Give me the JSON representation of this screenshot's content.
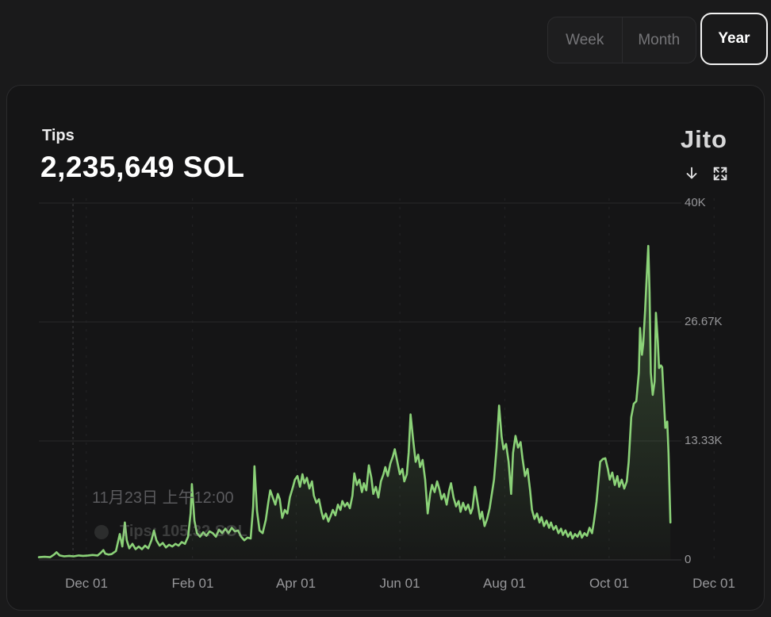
{
  "controls": {
    "items": [
      {
        "label": "Week",
        "selected": false
      },
      {
        "label": "Month",
        "selected": false
      },
      {
        "label": "Year",
        "selected": true
      }
    ]
  },
  "card": {
    "title": "Tips",
    "value": "2,235,649 SOL",
    "logo": "Jito",
    "icons": [
      {
        "name": "download-icon"
      },
      {
        "name": "expand-icon"
      }
    ]
  },
  "tooltip": {
    "date": "11月23日 上午12:00",
    "value_label": "Tips: 105.32 SOL",
    "crosshair_fx": 0.054
  },
  "chart_data": {
    "type": "area",
    "title": "Tips",
    "total": "2,235,649 SOL",
    "unit": "SOL",
    "values_unit": "thousand SOL per day",
    "line_color": "#8bd278",
    "grid": true,
    "legend": false,
    "x_axis": {
      "tick_labels": [
        "Dec 01",
        "Feb 01",
        "Apr 01",
        "Jun 01",
        "Aug 01",
        "Oct 01",
        "Dec 01"
      ],
      "tick_fx": [
        0.075,
        0.243,
        0.407,
        0.571,
        0.737,
        0.902,
        1.068
      ]
    },
    "y_axis": {
      "tick_labels": [
        "0",
        "13.33K",
        "26.67K",
        "40K"
      ],
      "tick_values": [
        0,
        13.33,
        26.67,
        40
      ],
      "ylim": [
        0,
        40
      ]
    },
    "points": [
      [
        0.0,
        0.3
      ],
      [
        0.009,
        0.35
      ],
      [
        0.018,
        0.3
      ],
      [
        0.024,
        0.6
      ],
      [
        0.028,
        0.85
      ],
      [
        0.033,
        0.5
      ],
      [
        0.04,
        0.4
      ],
      [
        0.048,
        0.45
      ],
      [
        0.055,
        0.4
      ],
      [
        0.063,
        0.5
      ],
      [
        0.07,
        0.45
      ],
      [
        0.078,
        0.5
      ],
      [
        0.085,
        0.55
      ],
      [
        0.093,
        0.5
      ],
      [
        0.098,
        0.8
      ],
      [
        0.102,
        1.1
      ],
      [
        0.105,
        0.7
      ],
      [
        0.11,
        0.6
      ],
      [
        0.115,
        0.65
      ],
      [
        0.122,
        1.0
      ],
      [
        0.128,
        2.9
      ],
      [
        0.132,
        1.5
      ],
      [
        0.136,
        4.2
      ],
      [
        0.139,
        2.2
      ],
      [
        0.143,
        1.3
      ],
      [
        0.148,
        1.8
      ],
      [
        0.153,
        1.2
      ],
      [
        0.158,
        1.5
      ],
      [
        0.163,
        1.2
      ],
      [
        0.168,
        1.6
      ],
      [
        0.173,
        1.3
      ],
      [
        0.178,
        2.2
      ],
      [
        0.182,
        3.3
      ],
      [
        0.186,
        2.2
      ],
      [
        0.191,
        1.6
      ],
      [
        0.196,
        1.9
      ],
      [
        0.201,
        1.4
      ],
      [
        0.206,
        1.7
      ],
      [
        0.211,
        1.5
      ],
      [
        0.216,
        1.8
      ],
      [
        0.221,
        1.6
      ],
      [
        0.226,
        2.0
      ],
      [
        0.231,
        1.8
      ],
      [
        0.236,
        2.6
      ],
      [
        0.24,
        5.2
      ],
      [
        0.242,
        8.5
      ],
      [
        0.246,
        4.4
      ],
      [
        0.25,
        3.0
      ],
      [
        0.255,
        2.6
      ],
      [
        0.26,
        3.1
      ],
      [
        0.265,
        2.7
      ],
      [
        0.27,
        3.2
      ],
      [
        0.275,
        3.0
      ],
      [
        0.28,
        2.6
      ],
      [
        0.285,
        3.4
      ],
      [
        0.29,
        3.0
      ],
      [
        0.295,
        3.5
      ],
      [
        0.3,
        3.0
      ],
      [
        0.305,
        3.6
      ],
      [
        0.31,
        3.2
      ],
      [
        0.315,
        3.3
      ],
      [
        0.32,
        2.6
      ],
      [
        0.325,
        2.2
      ],
      [
        0.33,
        2.5
      ],
      [
        0.335,
        2.4
      ],
      [
        0.339,
        6.0
      ],
      [
        0.341,
        10.5
      ],
      [
        0.345,
        5.5
      ],
      [
        0.349,
        3.3
      ],
      [
        0.354,
        3.0
      ],
      [
        0.359,
        4.5
      ],
      [
        0.363,
        6.5
      ],
      [
        0.366,
        7.8
      ],
      [
        0.37,
        7.0
      ],
      [
        0.374,
        6.2
      ],
      [
        0.378,
        7.4
      ],
      [
        0.381,
        6.8
      ],
      [
        0.385,
        4.7
      ],
      [
        0.389,
        5.6
      ],
      [
        0.393,
        5.2
      ],
      [
        0.397,
        7.0
      ],
      [
        0.402,
        8.2
      ],
      [
        0.405,
        9.0
      ],
      [
        0.409,
        9.4
      ],
      [
        0.413,
        8.2
      ],
      [
        0.417,
        9.6
      ],
      [
        0.42,
        8.6
      ],
      [
        0.424,
        9.2
      ],
      [
        0.428,
        8.0
      ],
      [
        0.432,
        8.8
      ],
      [
        0.435,
        7.2
      ],
      [
        0.439,
        6.4
      ],
      [
        0.443,
        6.8
      ],
      [
        0.447,
        5.4
      ],
      [
        0.45,
        4.6
      ],
      [
        0.454,
        5.2
      ],
      [
        0.458,
        4.3
      ],
      [
        0.462,
        5.0
      ],
      [
        0.465,
        5.6
      ],
      [
        0.469,
        5.0
      ],
      [
        0.473,
        6.2
      ],
      [
        0.477,
        5.6
      ],
      [
        0.48,
        6.6
      ],
      [
        0.484,
        6.0
      ],
      [
        0.488,
        6.4
      ],
      [
        0.492,
        5.8
      ],
      [
        0.496,
        7.2
      ],
      [
        0.499,
        9.7
      ],
      [
        0.503,
        8.4
      ],
      [
        0.507,
        9.0
      ],
      [
        0.511,
        7.6
      ],
      [
        0.514,
        8.6
      ],
      [
        0.518,
        7.8
      ],
      [
        0.522,
        10.6
      ],
      [
        0.526,
        9.2
      ],
      [
        0.529,
        7.4
      ],
      [
        0.533,
        8.2
      ],
      [
        0.537,
        7.0
      ],
      [
        0.541,
        8.8
      ],
      [
        0.545,
        9.6
      ],
      [
        0.548,
        10.4
      ],
      [
        0.552,
        9.4
      ],
      [
        0.556,
        10.8
      ],
      [
        0.56,
        11.6
      ],
      [
        0.563,
        12.4
      ],
      [
        0.567,
        11.0
      ],
      [
        0.571,
        9.6
      ],
      [
        0.575,
        10.2
      ],
      [
        0.578,
        8.8
      ],
      [
        0.582,
        9.6
      ],
      [
        0.585,
        12.0
      ],
      [
        0.588,
        16.3
      ],
      [
        0.592,
        13.5
      ],
      [
        0.596,
        11.0
      ],
      [
        0.6,
        11.8
      ],
      [
        0.603,
        10.4
      ],
      [
        0.607,
        11.2
      ],
      [
        0.611,
        9.0
      ],
      [
        0.615,
        5.2
      ],
      [
        0.619,
        7.4
      ],
      [
        0.622,
        8.4
      ],
      [
        0.626,
        7.6
      ],
      [
        0.63,
        8.8
      ],
      [
        0.634,
        7.8
      ],
      [
        0.637,
        6.8
      ],
      [
        0.641,
        7.4
      ],
      [
        0.645,
        6.2
      ],
      [
        0.649,
        7.8
      ],
      [
        0.652,
        8.6
      ],
      [
        0.656,
        7.0
      ],
      [
        0.66,
        6.0
      ],
      [
        0.664,
        6.6
      ],
      [
        0.667,
        5.4
      ],
      [
        0.671,
        6.4
      ],
      [
        0.675,
        5.6
      ],
      [
        0.679,
        6.2
      ],
      [
        0.683,
        5.2
      ],
      [
        0.686,
        5.8
      ],
      [
        0.69,
        8.2
      ],
      [
        0.694,
        6.4
      ],
      [
        0.698,
        4.6
      ],
      [
        0.701,
        5.4
      ],
      [
        0.705,
        3.8
      ],
      [
        0.709,
        4.6
      ],
      [
        0.713,
        5.8
      ],
      [
        0.716,
        7.2
      ],
      [
        0.72,
        9.0
      ],
      [
        0.724,
        12.5
      ],
      [
        0.728,
        17.3
      ],
      [
        0.732,
        13.8
      ],
      [
        0.735,
        12.4
      ],
      [
        0.739,
        13.0
      ],
      [
        0.743,
        11.0
      ],
      [
        0.747,
        7.4
      ],
      [
        0.75,
        12.0
      ],
      [
        0.754,
        13.9
      ],
      [
        0.758,
        12.6
      ],
      [
        0.762,
        13.2
      ],
      [
        0.765,
        11.4
      ],
      [
        0.769,
        9.4
      ],
      [
        0.773,
        10.2
      ],
      [
        0.777,
        7.8
      ],
      [
        0.78,
        5.6
      ],
      [
        0.784,
        4.6
      ],
      [
        0.788,
        5.2
      ],
      [
        0.792,
        4.2
      ],
      [
        0.795,
        4.8
      ],
      [
        0.799,
        3.8
      ],
      [
        0.803,
        4.4
      ],
      [
        0.807,
        3.6
      ],
      [
        0.81,
        4.2
      ],
      [
        0.814,
        3.4
      ],
      [
        0.818,
        3.8
      ],
      [
        0.822,
        3.0
      ],
      [
        0.826,
        3.5
      ],
      [
        0.829,
        2.8
      ],
      [
        0.833,
        3.3
      ],
      [
        0.837,
        2.6
      ],
      [
        0.841,
        3.1
      ],
      [
        0.844,
        2.4
      ],
      [
        0.848,
        2.9
      ],
      [
        0.852,
        2.6
      ],
      [
        0.856,
        3.2
      ],
      [
        0.859,
        2.5
      ],
      [
        0.863,
        3.0
      ],
      [
        0.867,
        2.7
      ],
      [
        0.871,
        3.6
      ],
      [
        0.875,
        3.0
      ],
      [
        0.878,
        4.3
      ],
      [
        0.882,
        6.5
      ],
      [
        0.886,
        9.5
      ],
      [
        0.888,
        11.0
      ],
      [
        0.892,
        11.3
      ],
      [
        0.896,
        11.4
      ],
      [
        0.9,
        10.2
      ],
      [
        0.903,
        9.0
      ],
      [
        0.907,
        9.8
      ],
      [
        0.911,
        8.4
      ],
      [
        0.915,
        9.4
      ],
      [
        0.918,
        8.2
      ],
      [
        0.922,
        9.0
      ],
      [
        0.926,
        8.0
      ],
      [
        0.93,
        8.8
      ],
      [
        0.933,
        11.0
      ],
      [
        0.937,
        16.0
      ],
      [
        0.941,
        17.5
      ],
      [
        0.945,
        17.8
      ],
      [
        0.949,
        21.0
      ],
      [
        0.951,
        26.0
      ],
      [
        0.954,
        23.0
      ],
      [
        0.956,
        24.2
      ],
      [
        0.959,
        28.0
      ],
      [
        0.961,
        31.0
      ],
      [
        0.964,
        35.2
      ],
      [
        0.966,
        30.0
      ],
      [
        0.968,
        21.0
      ],
      [
        0.971,
        18.5
      ],
      [
        0.974,
        20.0
      ],
      [
        0.976,
        27.7
      ],
      [
        0.979,
        24.5
      ],
      [
        0.981,
        21.5
      ],
      [
        0.984,
        21.8
      ],
      [
        0.986,
        21.6
      ],
      [
        0.989,
        17.5
      ],
      [
        0.991,
        14.8
      ],
      [
        0.994,
        15.5
      ],
      [
        0.996,
        12.0
      ],
      [
        0.999,
        4.2
      ]
    ]
  }
}
